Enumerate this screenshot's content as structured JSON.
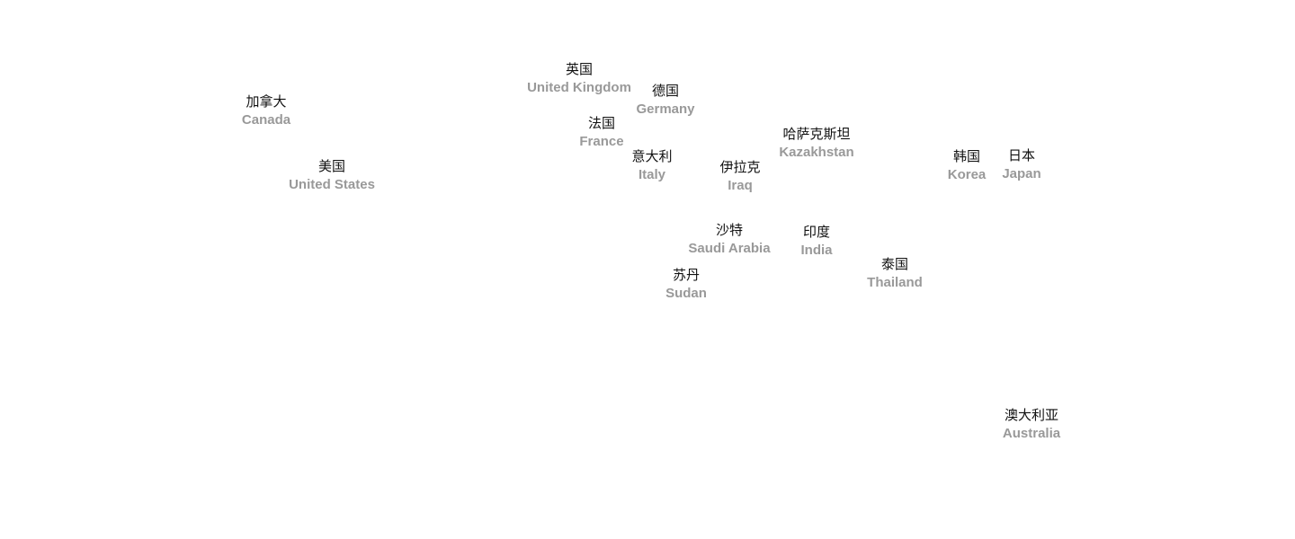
{
  "countries": [
    {
      "zh": "加拿大",
      "en": "Canada"
    },
    {
      "zh": "美国",
      "en": "United States"
    },
    {
      "zh": "英国",
      "en": "United Kingdom"
    },
    {
      "zh": "德国",
      "en": "Germany"
    },
    {
      "zh": "法国",
      "en": "France"
    },
    {
      "zh": "意大利",
      "en": "Italy"
    },
    {
      "zh": "伊拉克",
      "en": "Iraq"
    },
    {
      "zh": "哈萨克斯坦",
      "en": "Kazakhstan"
    },
    {
      "zh": "韩国",
      "en": "Korea"
    },
    {
      "zh": "日本",
      "en": "Japan"
    },
    {
      "zh": "沙特",
      "en": "Saudi Arabia"
    },
    {
      "zh": "印度",
      "en": "India"
    },
    {
      "zh": "苏丹",
      "en": "Sudan"
    },
    {
      "zh": "泰国",
      "en": "Thailand"
    },
    {
      "zh": "澳大利亚",
      "en": "Australia"
    }
  ],
  "colors": {
    "label_zh": "#111111",
    "label_en": "#999999",
    "background": "#ffffff"
  }
}
